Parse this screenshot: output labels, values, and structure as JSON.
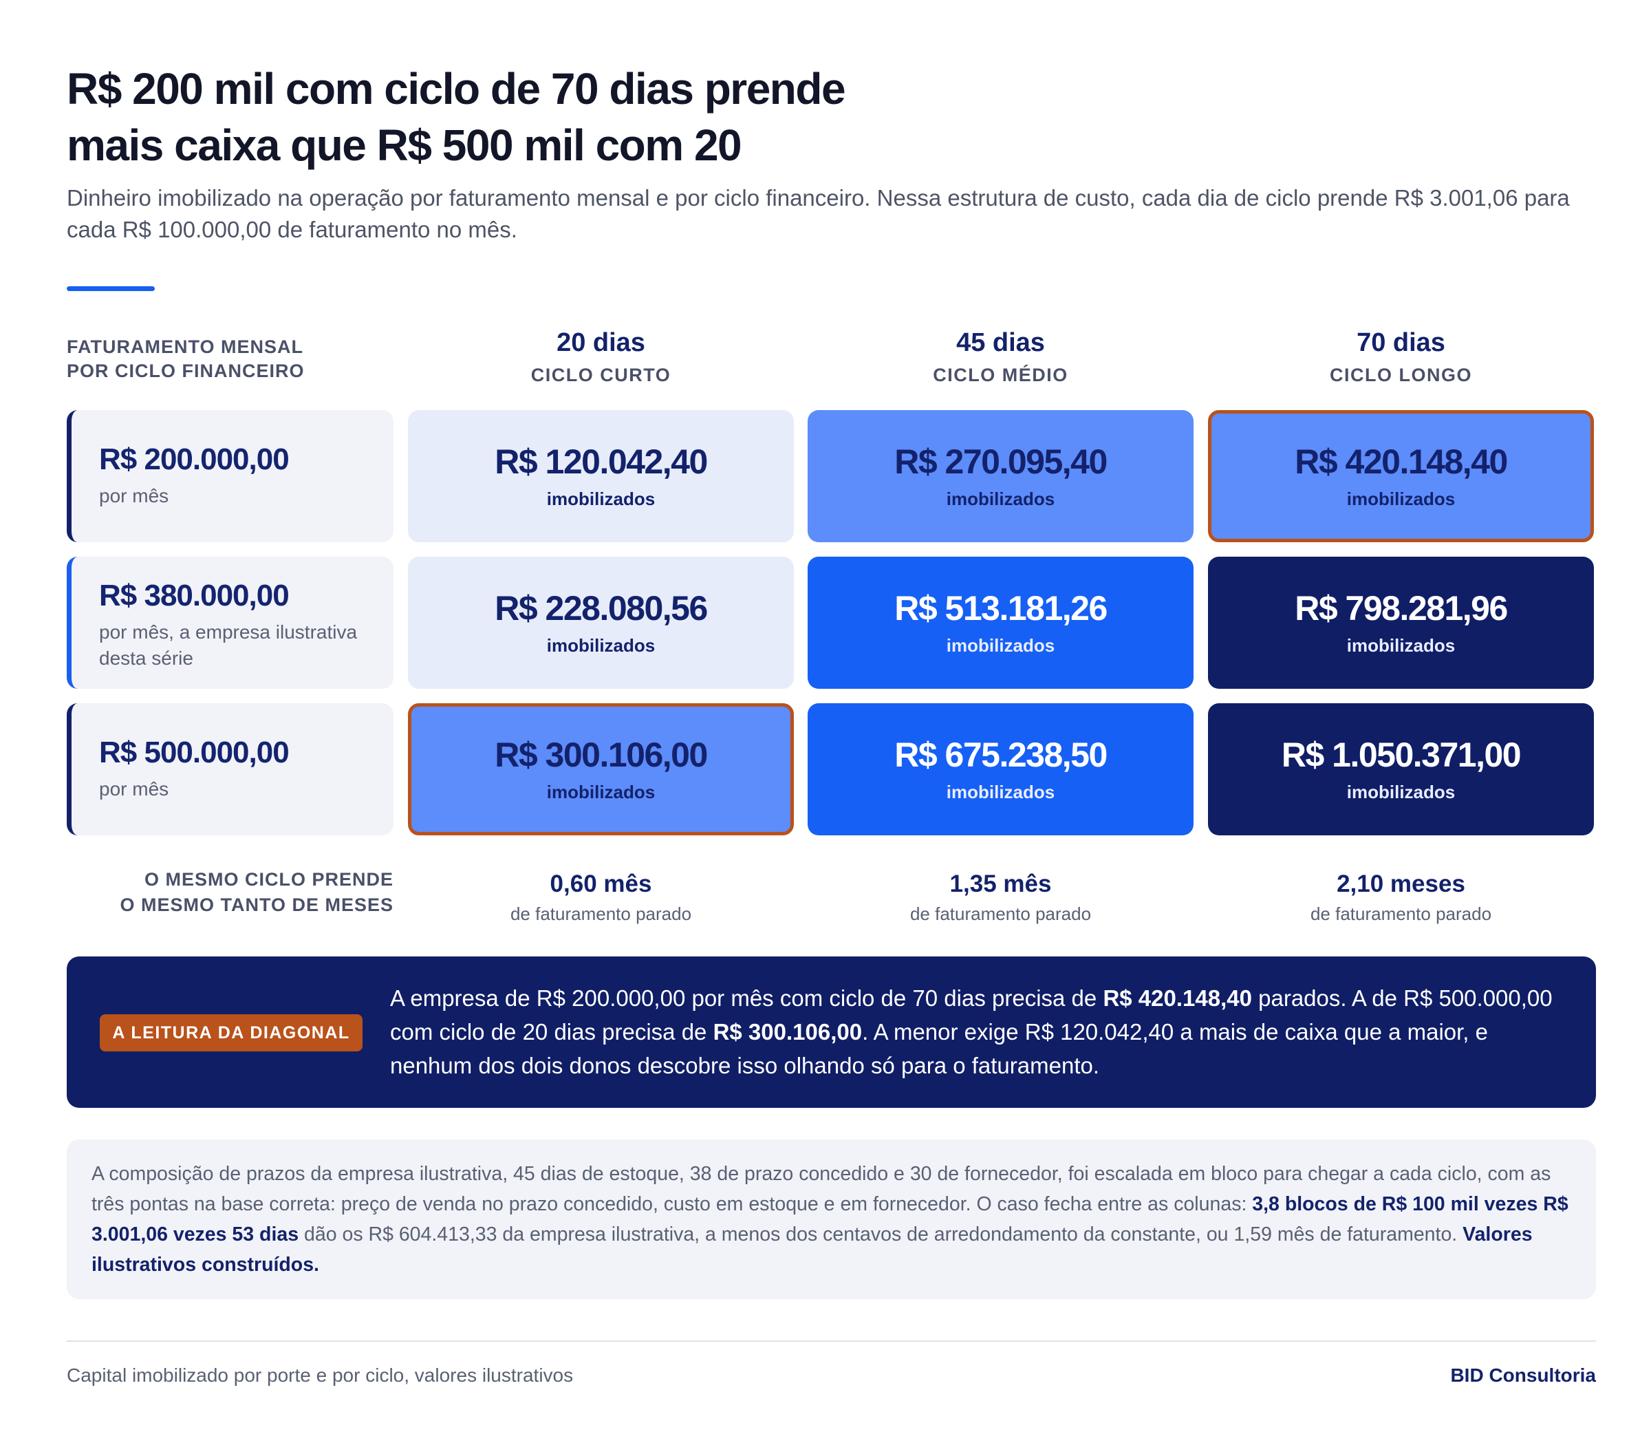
{
  "title": {
    "line1": "R$ 200 mil com ciclo de 70 dias prende",
    "line2": "mais caixa que R$ 500 mil com 20"
  },
  "subtitle": "Dinheiro imobilizado na operação por faturamento mensal e por ciclo financeiro. Nessa estrutura de custo, cada dia de ciclo prende R$ 3.001,06 para cada R$ 100.000,00 de faturamento no mês.",
  "corner_label": {
    "line1": "FATURAMENTO MENSAL",
    "line2": "POR CICLO FINANCEIRO"
  },
  "columns": [
    {
      "days": "20 dias",
      "cycle": "CICLO CURTO"
    },
    {
      "days": "45 dias",
      "cycle": "CICLO MÉDIO"
    },
    {
      "days": "70 dias",
      "cycle": "CICLO LONGO"
    }
  ],
  "rows": [
    {
      "amount": "R$ 200.000,00",
      "note": "por mês"
    },
    {
      "amount": "R$ 380.000,00",
      "note": "por mês, a empresa ilustrativa desta série"
    },
    {
      "amount": "R$ 500.000,00",
      "note": "por mês"
    }
  ],
  "cells": [
    [
      {
        "value": "R$ 120.042,40",
        "label": "imobilizados"
      },
      {
        "value": "R$ 270.095,40",
        "label": "imobilizados"
      },
      {
        "value": "R$ 420.148,40",
        "label": "imobilizados"
      }
    ],
    [
      {
        "value": "R$ 228.080,56",
        "label": "imobilizados"
      },
      {
        "value": "R$ 513.181,26",
        "label": "imobilizados"
      },
      {
        "value": "R$ 798.281,96",
        "label": "imobilizados"
      }
    ],
    [
      {
        "value": "R$ 300.106,00",
        "label": "imobilizados"
      },
      {
        "value": "R$ 675.238,50",
        "label": "imobilizados"
      },
      {
        "value": "R$ 1.050.371,00",
        "label": "imobilizados"
      }
    ]
  ],
  "footer_row": {
    "label_line1": "O MESMO CICLO PRENDE",
    "label_line2": "O MESMO TANTO DE MESES",
    "cols": [
      {
        "months": "0,60 mês",
        "sub": "de faturamento parado"
      },
      {
        "months": "1,35 mês",
        "sub": "de faturamento parado"
      },
      {
        "months": "2,10 meses",
        "sub": "de faturamento parado"
      }
    ]
  },
  "callout": {
    "badge": "A LEITURA DA DIAGONAL",
    "p1": "A empresa de R$ 200.000,00 por mês com ciclo de 70 dias precisa de ",
    "b1": "R$ 420.148,40",
    "p2": " parados. A de R$ 500.000,00 com ciclo de 20 dias precisa de ",
    "b2": "R$ 300.106,00",
    "p3": ". A menor exige R$ 120.042,40 a mais de caixa que a maior, e nenhum dos dois donos descobre isso olhando só para o faturamento."
  },
  "method_note": {
    "p1": "A composição de prazos da empresa ilustrativa, 45 dias de estoque, 38 de prazo concedido e 30 de fornecedor, foi escalada em bloco para chegar a cada ciclo, com as três pontas na base correta: preço de venda no prazo concedido, custo em estoque e em fornecedor. O caso fecha entre as colunas: ",
    "b1": "3,8 blocos de R$ 100 mil vezes R$ 3.001,06 vezes 53 dias",
    "p2": " dão os R$ 604.413,33 da empresa ilustrativa, a menos dos centavos de arredondamento da constante, ou 1,59 mês de faturamento. ",
    "b2": "Valores ilustrativos construídos."
  },
  "footer": {
    "left": "Capital imobilizado por porte e por ciclo, valores ilustrativos",
    "right": "BID Consultoria"
  },
  "colors": {
    "pale": "#e7ecfb",
    "mid": "#5d8cfb",
    "bright": "#1660f5",
    "dark": "#101e66",
    "accent_orange": "#b9521b",
    "accent_blue": "#1560f0"
  },
  "chart_data": {
    "type": "heatmap",
    "title": "R$ 200 mil com ciclo de 70 dias prende mais caixa que R$ 500 mil com 20",
    "x_categories": [
      "20 dias",
      "45 dias",
      "70 dias"
    ],
    "y_categories": [
      "R$ 200.000,00",
      "R$ 380.000,00",
      "R$ 500.000,00"
    ],
    "values": [
      [
        120042.4,
        270095.4,
        420148.4
      ],
      [
        228080.56,
        513181.26,
        798281.96
      ],
      [
        300106.0,
        675238.5,
        1050371.0
      ]
    ],
    "months_of_revenue": [
      0.6,
      1.35,
      2.1
    ],
    "highlighted_cells": [
      [
        0,
        2
      ],
      [
        2,
        0
      ]
    ]
  }
}
